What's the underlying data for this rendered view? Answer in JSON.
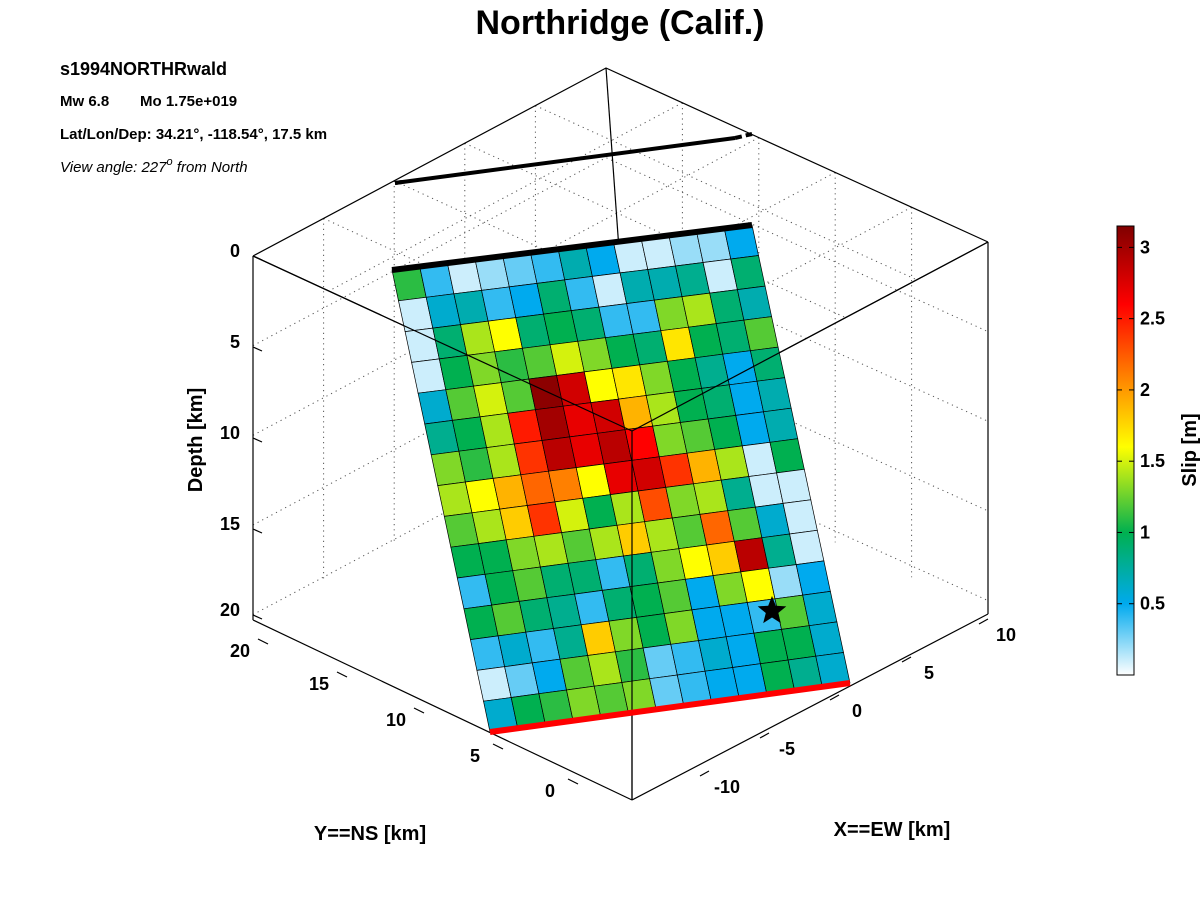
{
  "chart_data": {
    "type": "heatmap",
    "title": "Northridge (Calif.)",
    "header": {
      "model": "s1994NORTHRwald",
      "mw_label": "Mw 6.8",
      "mo_label": "Mo 1.75e+019",
      "location_label": "Lat/Lon/Dep: 34.21°, -118.54°, 17.5 km",
      "view_prefix": "View angle: 227",
      "view_degree": "o",
      "view_suffix": " from North"
    },
    "depth_axis": {
      "label": "Depth [km]",
      "ticks": [
        "0",
        "5",
        "10",
        "15",
        "20"
      ]
    },
    "ns_axis": {
      "label": "Y==NS [km]",
      "ticks": [
        "20",
        "15",
        "10",
        "5",
        "0"
      ]
    },
    "ew_axis": {
      "label": "X==EW [km]",
      "ticks": [
        "10",
        "5",
        "0",
        "-5",
        "-10"
      ]
    },
    "colorbar": {
      "label": "Slip [m]",
      "ticks": [
        "3",
        "2.5",
        "2",
        "1.5",
        "1",
        "0.5"
      ],
      "range": [
        0,
        3.15
      ],
      "colormap": [
        "#ffffff",
        "#00aaee",
        "#00b050",
        "#ffff00",
        "#ff0000",
        "#800000"
      ]
    },
    "hypocenter_symbol": "star",
    "fault_top_color": "#000000",
    "fault_bottom_color": "#ff0000",
    "slip_grid_note": "rows from top edge (shallow) to bottom edge (deep); columns from left to right",
    "slip": [
      [
        1.1,
        0.4,
        0.1,
        0.2,
        0.3,
        0.4,
        0.7,
        0.5,
        0.1,
        0.1,
        0.2,
        0.2,
        0.5
      ],
      [
        0.1,
        0.6,
        0.7,
        0.4,
        0.5,
        0.9,
        0.4,
        0.1,
        0.7,
        0.7,
        0.8,
        0.1,
        0.9
      ],
      [
        0.1,
        0.9,
        1.4,
        1.6,
        0.9,
        1.0,
        0.9,
        0.4,
        0.4,
        1.3,
        1.4,
        0.9,
        0.7
      ],
      [
        0.1,
        1.0,
        1.3,
        1.1,
        1.2,
        1.5,
        1.3,
        1.0,
        0.9,
        1.7,
        1.0,
        0.9,
        1.2
      ],
      [
        0.6,
        1.2,
        1.5,
        1.2,
        3.1,
        2.8,
        1.6,
        1.7,
        1.3,
        1.0,
        0.8,
        0.5,
        0.9
      ],
      [
        0.8,
        1.0,
        1.4,
        2.5,
        3.0,
        2.7,
        2.8,
        1.9,
        1.4,
        1.0,
        0.9,
        0.5,
        0.7
      ],
      [
        1.3,
        1.1,
        1.4,
        2.4,
        2.9,
        2.7,
        2.9,
        2.6,
        1.3,
        1.2,
        1.0,
        0.5,
        0.7
      ],
      [
        1.4,
        1.6,
        1.9,
        2.2,
        2.1,
        1.6,
        2.7,
        2.8,
        2.4,
        1.9,
        1.4,
        0.1,
        1.0
      ],
      [
        1.2,
        1.4,
        1.8,
        2.4,
        1.5,
        1.0,
        1.4,
        2.3,
        1.3,
        1.4,
        0.8,
        0.1,
        0.1
      ],
      [
        1.0,
        1.0,
        1.3,
        1.4,
        1.2,
        1.4,
        1.8,
        1.4,
        1.2,
        2.2,
        1.2,
        0.6,
        0.1
      ],
      [
        0.4,
        1.0,
        1.2,
        0.9,
        0.9,
        0.4,
        0.9,
        1.3,
        1.6,
        1.8,
        2.9,
        0.8,
        0.1
      ],
      [
        1.0,
        1.2,
        0.9,
        0.8,
        0.4,
        0.9,
        1.0,
        1.2,
        0.5,
        1.3,
        1.6,
        0.2,
        0.5
      ],
      [
        0.4,
        0.6,
        0.4,
        0.8,
        1.8,
        1.3,
        1.0,
        1.3,
        0.5,
        0.5,
        0.4,
        1.2,
        0.6
      ],
      [
        0.1,
        0.3,
        0.5,
        1.2,
        1.4,
        1.1,
        0.3,
        0.4,
        0.6,
        0.5,
        1.0,
        1.0,
        0.6
      ],
      [
        0.6,
        1.0,
        1.1,
        1.3,
        1.2,
        1.3,
        0.3,
        0.4,
        0.5,
        0.5,
        1.0,
        0.8,
        0.6
      ]
    ]
  }
}
